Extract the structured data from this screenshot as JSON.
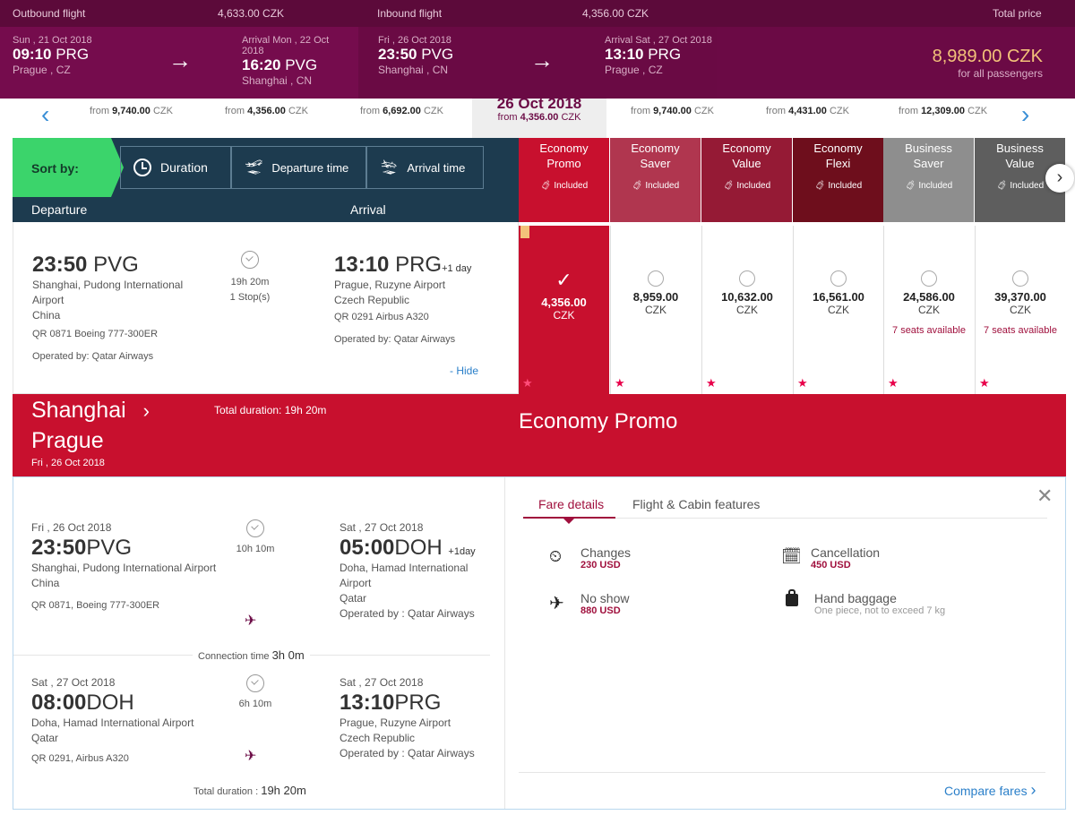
{
  "top_bar": {
    "outbound_label": "Outbound flight",
    "outbound_price": "4,633.00 CZK",
    "inbound_label": "Inbound flight",
    "inbound_price": "4,356.00 CZK",
    "total_label": "Total price"
  },
  "summary": {
    "out_dep_date": "Sun , 21 Oct 2018",
    "out_dep_time": "09:10",
    "out_dep_code": "PRG",
    "out_dep_city": "Prague , CZ",
    "out_arr_date": "Arrival Mon , 22 Oct 2018",
    "out_arr_time": "16:20",
    "out_arr_code": "PVG",
    "out_arr_city": "Shanghai , CN",
    "in_dep_date": "Fri , 26 Oct 2018",
    "in_dep_time": "23:50",
    "in_dep_code": "PVG",
    "in_dep_city": "Shanghai , CN",
    "in_arr_date": "Arrival Sat , 27 Oct 2018",
    "in_arr_time": "13:10",
    "in_arr_code": "PRG",
    "in_arr_city": "Prague , CZ",
    "total_price": "8,989.00 CZK",
    "total_note": "for all passengers"
  },
  "date_strip": {
    "from_label": "from",
    "items": [
      {
        "price": "9,740.00",
        "cur": "CZK"
      },
      {
        "price": "4,356.00",
        "cur": "CZK"
      },
      {
        "price": "6,692.00",
        "cur": "CZK"
      },
      {
        "price": "9,740.00",
        "cur": "CZK"
      },
      {
        "price": "4,431.00",
        "cur": "CZK"
      },
      {
        "price": "12,309.00",
        "cur": "CZK"
      }
    ],
    "selected_date": "26 Oct 2018",
    "selected_price": "4,356.00",
    "selected_cur": "CZK"
  },
  "sort": {
    "label": "Sort by:",
    "duration": "Duration",
    "departure_time": "Departure time",
    "arrival_time": "Arrival time"
  },
  "columns": {
    "departure": "Departure",
    "arrival": "Arrival"
  },
  "fares": [
    {
      "name": "Economy Promo",
      "line1": "Economy",
      "line2": "Promo",
      "included": "Included",
      "price": "4,356.00",
      "cur": "CZK",
      "seats": "",
      "color": "#c8102e"
    },
    {
      "name": "Economy Saver",
      "line1": "Economy",
      "line2": "Saver",
      "included": "Included",
      "price": "8,959.00",
      "cur": "CZK",
      "seats": "",
      "color": "#b0364f"
    },
    {
      "name": "Economy Value",
      "line1": "Economy",
      "line2": "Value",
      "included": "Included",
      "price": "10,632.00",
      "cur": "CZK",
      "seats": "",
      "color": "#951a35"
    },
    {
      "name": "Economy Flexi",
      "line1": "Economy",
      "line2": "Flexi",
      "included": "Included",
      "price": "16,561.00",
      "cur": "CZK",
      "seats": "",
      "color": "#6e0e1c"
    },
    {
      "name": "Business Saver",
      "line1": "Business",
      "line2": "Saver",
      "included": "Included",
      "price": "24,586.00",
      "cur": "CZK",
      "seats": "7 seats available",
      "color": "#8e8e8e"
    },
    {
      "name": "Business Value",
      "line1": "Business",
      "line2": "Value",
      "included": "Included",
      "price": "39,370.00",
      "cur": "CZK",
      "seats": "7 seats available",
      "color": "#5e5e5e"
    }
  ],
  "flight": {
    "dep_time": "23:50",
    "dep_code": "PVG",
    "dep_airport": "Shanghai, Pudong International Airport",
    "dep_country": "China",
    "flight_info": "QR 0871 Boeing 777-300ER",
    "operated": "Operated by: Qatar Airways",
    "duration": "19h 20m",
    "stops": "1 Stop(s)",
    "arr_time": "13:10",
    "arr_code": "PRG",
    "arr_plus": "+1 day",
    "arr_airport": "Prague, Ruzyne Airport",
    "arr_country": "Czech Republic",
    "arr_flight_info": "QR 0291 Airbus A320",
    "arr_operated": "Operated by: Qatar Airways",
    "hide": "- Hide"
  },
  "red_section": {
    "from_city": "Shanghai",
    "to_city": "Prague",
    "date": "Fri , 26 Oct 2018",
    "total_duration": "Total duration: 19h 20m",
    "fare_name": "Economy Promo"
  },
  "legs": [
    {
      "dep_date": "Fri , 26 Oct 2018",
      "dep_time": "23:50",
      "dep_code": "PVG",
      "dep_airport": "Shanghai, Pudong International Airport",
      "dep_country": "China",
      "flight": "QR 0871, Boeing 777-300ER",
      "duration": "10h 10m",
      "arr_date": "Sat , 27 Oct 2018",
      "arr_time": "05:00",
      "arr_code": "DOH",
      "arr_plus": "+1day",
      "arr_airport": "Doha, Hamad International Airport",
      "arr_country": "Qatar",
      "operated": "Operated by : Qatar Airways"
    },
    {
      "dep_date": "Sat , 27 Oct 2018",
      "dep_time": "08:00",
      "dep_code": "DOH",
      "dep_airport": "Doha, Hamad International Airport",
      "dep_country": "Qatar",
      "flight": "QR 0291, Airbus A320",
      "duration": "6h 10m",
      "arr_date": "Sat , 27 Oct 2018",
      "arr_time": "13:10",
      "arr_code": "PRG",
      "arr_plus": "",
      "arr_airport": "Prague, Ruzyne Airport",
      "arr_country": "Czech Republic",
      "operated": "Operated by : Qatar Airways"
    }
  ],
  "connection": {
    "label": "Connection time",
    "value": "3h 0m"
  },
  "total": {
    "label": "Total duration :",
    "value": "19h 20m"
  },
  "fare_tabs": {
    "details": "Fare details",
    "features": "Flight & Cabin features"
  },
  "fare_details": {
    "changes_label": "Changes",
    "changes_value": "230 USD",
    "cancel_label": "Cancellation",
    "cancel_value": "450 USD",
    "noshow_label": "No show",
    "noshow_value": "880 USD",
    "baggage_label": "Hand baggage",
    "baggage_value": "One piece, not to exceed 7 kg"
  },
  "compare": "Compare fares"
}
